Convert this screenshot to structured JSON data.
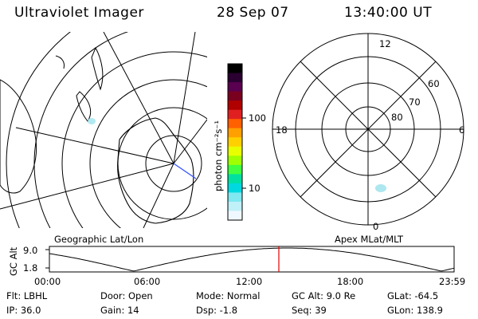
{
  "header": {
    "instrument": "Ultraviolet Imager",
    "date": "28 Sep 07",
    "time": "13:40:00 UT"
  },
  "left_map": {
    "caption": "Geographic Lat/Lon"
  },
  "colorbar": {
    "unit_label": "photon cm⁻²s⁻¹",
    "ticks": [
      "100",
      "10"
    ],
    "scale": "log",
    "colors": [
      "#000000",
      "#2a0030",
      "#5a0050",
      "#7a0020",
      "#b00000",
      "#e02020",
      "#ff6000",
      "#ffa000",
      "#ffd000",
      "#e8ff00",
      "#a0ff00",
      "#40ff40",
      "#00e0a0",
      "#00d8e0",
      "#80e8f0",
      "#c0f0f8",
      "#f0f8ff"
    ]
  },
  "polar_map": {
    "caption": "Apex MLat/MLT",
    "mlt_labels": {
      "top": "12",
      "left": "18",
      "right": "6",
      "bottom": "0"
    },
    "lat_labels": [
      "60",
      "70",
      "80"
    ]
  },
  "alt_plot": {
    "ylabel": "GC Alt",
    "y_ticks": [
      "9.0",
      "1.8"
    ],
    "x_ticks": [
      "00:00",
      "06:00",
      "12:00",
      "18:00",
      "23:59"
    ],
    "marker_time": "13:40"
  },
  "status": {
    "flt": "Flt:  LBHL",
    "ip": "IP:  36.0",
    "door": "Door:  Open",
    "gain": "Gain:  14",
    "mode": "Mode:  Normal",
    "dsp": "Dsp:    -1.8",
    "gcalt": "GC Alt:  9.0 Re",
    "seq": "Seq:  39",
    "glat": "GLat:  -64.5",
    "glon": "GLon:  138.9"
  }
}
